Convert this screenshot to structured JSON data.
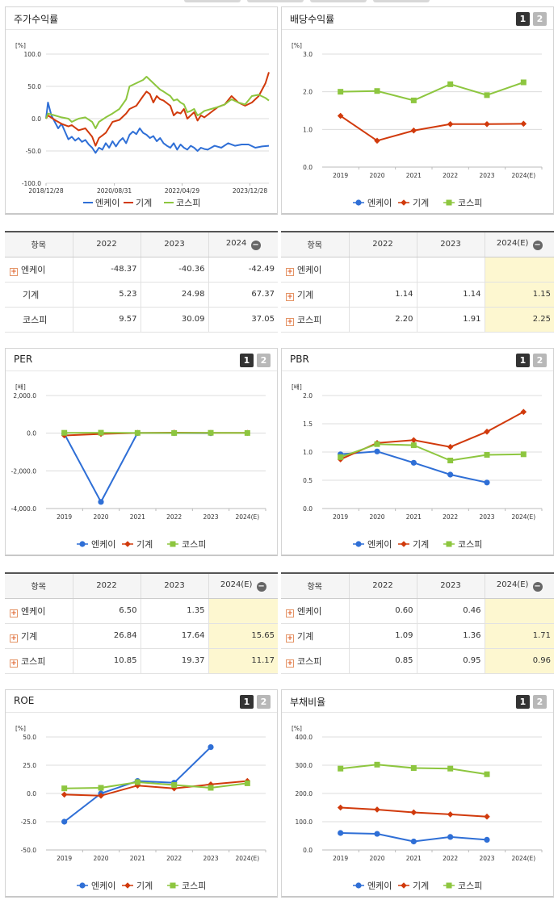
{
  "colors": {
    "enk": "#2f6fd6",
    "machine": "#d13a0c",
    "kospi": "#8dc63f"
  },
  "legend": [
    "엔케이",
    "기계",
    "코스피"
  ],
  "tab_labels": [
    "1",
    "2"
  ],
  "panels": {
    "stock_return": {
      "title": "주가수익률"
    },
    "dividend": {
      "title": "배당수익률"
    },
    "per": {
      "title": "PER"
    },
    "pbr": {
      "title": "PBR"
    },
    "roe": {
      "title": "ROE"
    },
    "debt": {
      "title": "부채비율"
    }
  },
  "chart_data": [
    {
      "id": "stock_return",
      "type": "line",
      "ylabel": "[%]",
      "ylim": [
        -100,
        100
      ],
      "yticks": [
        "100.0",
        "50.0",
        "0.0",
        "-50.0",
        "-100.0"
      ],
      "xticks": [
        "2018/12/28",
        "2020/08/31",
        "2022/04/29",
        "2023/12/28"
      ],
      "x_range": [
        "2018/12/28",
        "2024/06"
      ],
      "series": [
        {
          "name": "엔케이",
          "color": "#2f6fd6",
          "points": [
            [
              "2018/12/28",
              0
            ],
            [
              "2019/01",
              25
            ],
            [
              "2019/02",
              5
            ],
            [
              "2019/03",
              -5
            ],
            [
              "2019/04",
              -15
            ],
            [
              "2019/05",
              -8
            ],
            [
              "2019/06",
              -20
            ],
            [
              "2019/07",
              -32
            ],
            [
              "2019/08",
              -28
            ],
            [
              "2019/09",
              -34
            ],
            [
              "2019/10",
              -30
            ],
            [
              "2019/11",
              -36
            ],
            [
              "2019/12",
              -33
            ],
            [
              "2020/01",
              -40
            ],
            [
              "2020/02",
              -45
            ],
            [
              "2020/03",
              -53
            ],
            [
              "2020/04",
              -45
            ],
            [
              "2020/05",
              -48
            ],
            [
              "2020/06",
              -38
            ],
            [
              "2020/07",
              -45
            ],
            [
              "2020/08",
              -35
            ],
            [
              "2020/09",
              -43
            ],
            [
              "2020/10",
              -35
            ],
            [
              "2020/11",
              -30
            ],
            [
              "2020/12",
              -38
            ],
            [
              "2021/01",
              -25
            ],
            [
              "2021/02",
              -20
            ],
            [
              "2021/03",
              -24
            ],
            [
              "2021/04",
              -15
            ],
            [
              "2021/05",
              -22
            ],
            [
              "2021/06",
              -25
            ],
            [
              "2021/07",
              -30
            ],
            [
              "2021/08",
              -27
            ],
            [
              "2021/09",
              -35
            ],
            [
              "2021/10",
              -30
            ],
            [
              "2021/11",
              -38
            ],
            [
              "2021/12",
              -42
            ],
            [
              "2022/01",
              -45
            ],
            [
              "2022/02",
              -38
            ],
            [
              "2022/03",
              -48
            ],
            [
              "2022/04",
              -40
            ],
            [
              "2022/05",
              -45
            ],
            [
              "2022/06",
              -48
            ],
            [
              "2022/07",
              -42
            ],
            [
              "2022/08",
              -45
            ],
            [
              "2022/09",
              -50
            ],
            [
              "2022/10",
              -45
            ],
            [
              "2022/11",
              -47
            ],
            [
              "2022/12",
              -48
            ],
            [
              "2023/02",
              -42
            ],
            [
              "2023/04",
              -45
            ],
            [
              "2023/06",
              -38
            ],
            [
              "2023/08",
              -42
            ],
            [
              "2023/10",
              -40
            ],
            [
              "2023/12",
              -40
            ],
            [
              "2024/02",
              -45
            ],
            [
              "2024/04",
              -43
            ],
            [
              "2024/06",
              -42
            ]
          ]
        },
        {
          "name": "기계",
          "color": "#d13a0c",
          "points": [
            [
              "2018/12/28",
              0
            ],
            [
              "2019/01",
              5
            ],
            [
              "2019/03",
              -2
            ],
            [
              "2019/05",
              -8
            ],
            [
              "2019/07",
              -12
            ],
            [
              "2019/08",
              -10
            ],
            [
              "2019/10",
              -18
            ],
            [
              "2019/12",
              -15
            ],
            [
              "2020/02",
              -28
            ],
            [
              "2020/03",
              -42
            ],
            [
              "2020/04",
              -30
            ],
            [
              "2020/06",
              -22
            ],
            [
              "2020/08",
              -5
            ],
            [
              "2020/10",
              -2
            ],
            [
              "2020/12",
              8
            ],
            [
              "2021/01",
              15
            ],
            [
              "2021/03",
              20
            ],
            [
              "2021/05",
              35
            ],
            [
              "2021/06",
              42
            ],
            [
              "2021/07",
              38
            ],
            [
              "2021/08",
              25
            ],
            [
              "2021/09",
              35
            ],
            [
              "2021/10",
              30
            ],
            [
              "2021/11",
              28
            ],
            [
              "2022/01",
              20
            ],
            [
              "2022/02",
              5
            ],
            [
              "2022/03",
              10
            ],
            [
              "2022/04",
              8
            ],
            [
              "2022/05",
              15
            ],
            [
              "2022/06",
              0
            ],
            [
              "2022/07",
              5
            ],
            [
              "2022/08",
              10
            ],
            [
              "2022/09",
              -3
            ],
            [
              "2022/10",
              5
            ],
            [
              "2022/11",
              2
            ],
            [
              "2023/01",
              10
            ],
            [
              "2023/03",
              18
            ],
            [
              "2023/05",
              22
            ],
            [
              "2023/07",
              35
            ],
            [
              "2023/09",
              25
            ],
            [
              "2023/11",
              20
            ],
            [
              "2024/01",
              25
            ],
            [
              "2024/03",
              35
            ],
            [
              "2024/05",
              55
            ],
            [
              "2024/06",
              72
            ]
          ]
        },
        {
          "name": "코스피",
          "color": "#8dc63f",
          "points": [
            [
              "2018/12/28",
              0
            ],
            [
              "2019/01",
              8
            ],
            [
              "2019/03",
              5
            ],
            [
              "2019/05",
              2
            ],
            [
              "2019/07",
              0
            ],
            [
              "2019/08",
              -5
            ],
            [
              "2019/10",
              0
            ],
            [
              "2019/12",
              2
            ],
            [
              "2020/02",
              -5
            ],
            [
              "2020/03",
              -15
            ],
            [
              "2020/04",
              -5
            ],
            [
              "2020/06",
              2
            ],
            [
              "2020/08",
              8
            ],
            [
              "2020/10",
              15
            ],
            [
              "2020/12",
              30
            ],
            [
              "2021/01",
              50
            ],
            [
              "2021/03",
              55
            ],
            [
              "2021/05",
              60
            ],
            [
              "2021/06",
              65
            ],
            [
              "2021/07",
              60
            ],
            [
              "2021/08",
              55
            ],
            [
              "2021/09",
              50
            ],
            [
              "2021/10",
              45
            ],
            [
              "2021/11",
              42
            ],
            [
              "2022/01",
              35
            ],
            [
              "2022/02",
              28
            ],
            [
              "2022/03",
              30
            ],
            [
              "2022/04",
              25
            ],
            [
              "2022/05",
              22
            ],
            [
              "2022/06",
              10
            ],
            [
              "2022/07",
              12
            ],
            [
              "2022/08",
              15
            ],
            [
              "2022/09",
              5
            ],
            [
              "2022/10",
              8
            ],
            [
              "2022/11",
              12
            ],
            [
              "2023/01",
              15
            ],
            [
              "2023/03",
              18
            ],
            [
              "2023/05",
              22
            ],
            [
              "2023/07",
              30
            ],
            [
              "2023/09",
              25
            ],
            [
              "2023/11",
              22
            ],
            [
              "2024/01",
              35
            ],
            [
              "2024/03",
              37
            ],
            [
              "2024/05",
              32
            ],
            [
              "2024/06",
              28
            ]
          ]
        }
      ]
    },
    {
      "id": "dividend",
      "type": "line",
      "ylabel": "[%]",
      "ylim": [
        0,
        3
      ],
      "yticks": [
        "3.0",
        "2.0",
        "1.0",
        "0.0"
      ],
      "categories": [
        "2019",
        "2020",
        "2021",
        "2022",
        "2023",
        "2024(E)"
      ],
      "series": [
        {
          "name": "엔케이",
          "values": [
            null,
            null,
            null,
            null,
            null,
            null
          ]
        },
        {
          "name": "기계",
          "values": [
            1.36,
            0.7,
            0.97,
            1.14,
            1.14,
            1.15
          ]
        },
        {
          "name": "코스피",
          "values": [
            2.0,
            2.02,
            1.77,
            2.2,
            1.91,
            2.25
          ]
        }
      ]
    },
    {
      "id": "per",
      "type": "line",
      "ylabel": "[배]",
      "ylim": [
        -4000,
        2000
      ],
      "yticks": [
        "2,000.0",
        "0.0",
        "-2,000.0",
        "-4,000.0"
      ],
      "categories": [
        "2019",
        "2020",
        "2021",
        "2022",
        "2023",
        "2024(E)"
      ],
      "series": [
        {
          "name": "엔케이",
          "values": [
            -30,
            -3650,
            10,
            6.5,
            1.35,
            null
          ]
        },
        {
          "name": "기계",
          "values": [
            -120,
            -40,
            15,
            26.84,
            17.64,
            15.65
          ]
        },
        {
          "name": "코스피",
          "values": [
            20,
            25,
            15,
            10.85,
            19.37,
            11.17
          ]
        }
      ]
    },
    {
      "id": "pbr",
      "type": "line",
      "ylabel": "[배]",
      "ylim": [
        0,
        2
      ],
      "yticks": [
        "2.0",
        "1.5",
        "1.0",
        "0.5",
        "0.0"
      ],
      "categories": [
        "2019",
        "2020",
        "2021",
        "2022",
        "2023",
        "2024(E)"
      ],
      "series": [
        {
          "name": "엔케이",
          "values": [
            0.96,
            1.01,
            0.81,
            0.6,
            0.46,
            null
          ]
        },
        {
          "name": "기계",
          "values": [
            0.87,
            1.16,
            1.21,
            1.09,
            1.36,
            1.71
          ]
        },
        {
          "name": "코스피",
          "values": [
            0.91,
            1.14,
            1.12,
            0.85,
            0.95,
            0.96
          ]
        }
      ]
    },
    {
      "id": "roe",
      "type": "line",
      "ylabel": "[%]",
      "ylim": [
        -50,
        50
      ],
      "yticks": [
        "50.0",
        "25.0",
        "0.0",
        "-25.0",
        "-50.0"
      ],
      "categories": [
        "2019",
        "2020",
        "2021",
        "2022",
        "2023",
        "2024(E)"
      ],
      "series": [
        {
          "name": "엔케이",
          "values": [
            -25,
            0,
            11,
            9.5,
            41,
            null
          ]
        },
        {
          "name": "기계",
          "values": [
            -1,
            -2,
            7,
            4.5,
            8,
            11
          ]
        },
        {
          "name": "코스피",
          "values": [
            4.5,
            5,
            10,
            7.5,
            5,
            9
          ]
        }
      ]
    },
    {
      "id": "debt",
      "type": "line",
      "ylabel": "[%]",
      "ylim": [
        0,
        400
      ],
      "yticks": [
        "400.0",
        "300.0",
        "200.0",
        "100.0",
        "0.0"
      ],
      "categories": [
        "2019",
        "2020",
        "2021",
        "2022",
        "2023",
        "2024(E)"
      ],
      "series": [
        {
          "name": "엔케이",
          "values": [
            60,
            57,
            30,
            46,
            36,
            null
          ]
        },
        {
          "name": "기계",
          "values": [
            150,
            143,
            133,
            126,
            118,
            null
          ]
        },
        {
          "name": "코스피",
          "values": [
            288,
            302,
            290,
            288,
            268,
            null
          ]
        }
      ]
    }
  ],
  "tables": {
    "stock_return": {
      "header": [
        "항목",
        "2022",
        "2023",
        "2024"
      ],
      "rows": [
        {
          "name": "엔케이",
          "values": [
            "-48.37",
            "-40.36",
            "-42.49"
          ]
        },
        {
          "name": "기계",
          "values": [
            "5.23",
            "24.98",
            "67.37"
          ]
        },
        {
          "name": "코스피",
          "values": [
            "9.57",
            "30.09",
            "37.05"
          ]
        }
      ]
    },
    "dividend": {
      "header": [
        "항목",
        "2022",
        "2023",
        "2024(E)"
      ],
      "rows": [
        {
          "name": "엔케이",
          "values": [
            "",
            "",
            ""
          ]
        },
        {
          "name": "기계",
          "values": [
            "1.14",
            "1.14",
            "1.15"
          ]
        },
        {
          "name": "코스피",
          "values": [
            "2.20",
            "1.91",
            "2.25"
          ]
        }
      ]
    },
    "per": {
      "header": [
        "항목",
        "2022",
        "2023",
        "2024(E)"
      ],
      "rows": [
        {
          "name": "엔케이",
          "values": [
            "6.50",
            "1.35",
            ""
          ]
        },
        {
          "name": "기계",
          "values": [
            "26.84",
            "17.64",
            "15.65"
          ]
        },
        {
          "name": "코스피",
          "values": [
            "10.85",
            "19.37",
            "11.17"
          ]
        }
      ]
    },
    "pbr": {
      "header": [
        "항목",
        "2022",
        "2023",
        "2024(E)"
      ],
      "rows": [
        {
          "name": "엔케이",
          "values": [
            "0.60",
            "0.46",
            ""
          ]
        },
        {
          "name": "기계",
          "values": [
            "1.09",
            "1.36",
            "1.71"
          ]
        },
        {
          "name": "코스피",
          "values": [
            "0.85",
            "0.95",
            "0.96"
          ]
        }
      ]
    }
  }
}
